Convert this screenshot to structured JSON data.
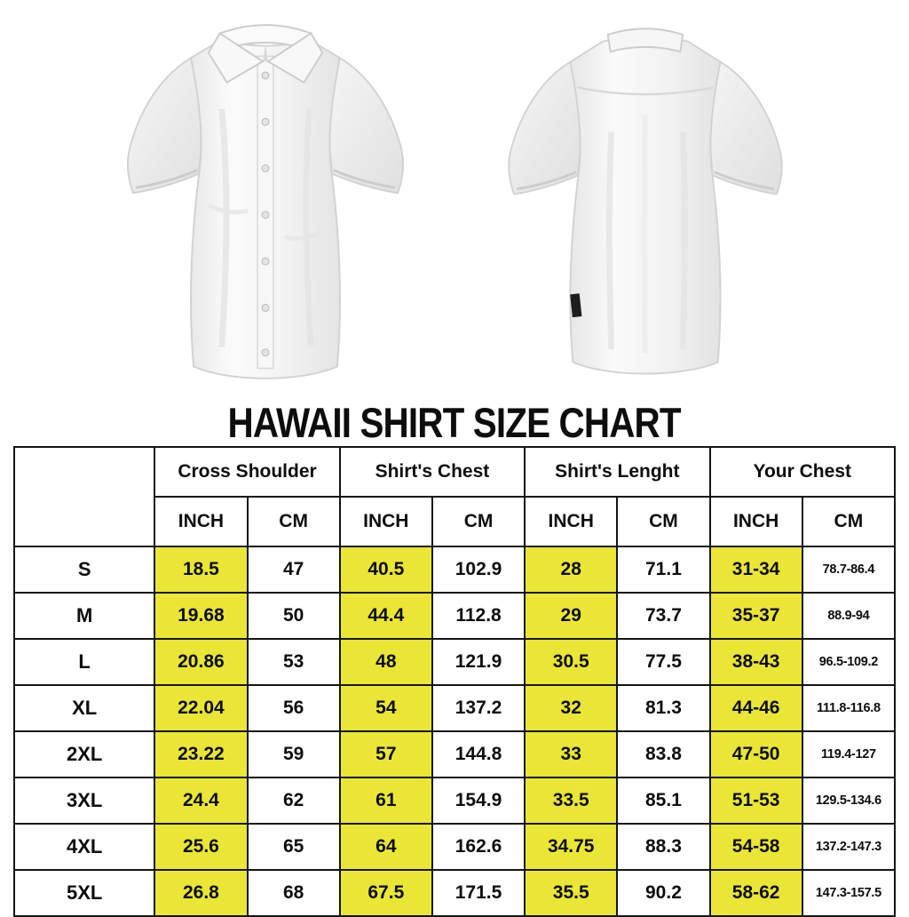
{
  "title": "HAWAII SHIRT SIZE CHART",
  "shirts": {
    "front_alt": "white short-sleeve button-up shirt, front view",
    "back_alt": "white short-sleeve button-up shirt, back view"
  },
  "table": {
    "highlight_color": "#eae636",
    "border_color": "#151515",
    "groups": [
      {
        "label": "Cross Shoulder"
      },
      {
        "label": "Shirt's Chest"
      },
      {
        "label": "Shirt's Lenght"
      },
      {
        "label": "Your Chest"
      }
    ],
    "unit_headers": [
      "INCH",
      "CM"
    ],
    "rows": [
      {
        "size": "S",
        "values": [
          "18.5",
          "47",
          "40.5",
          "102.9",
          "28",
          "71.1",
          "31-34",
          "78.7-86.4"
        ]
      },
      {
        "size": "M",
        "values": [
          "19.68",
          "50",
          "44.4",
          "112.8",
          "29",
          "73.7",
          "35-37",
          "88.9-94"
        ]
      },
      {
        "size": "L",
        "values": [
          "20.86",
          "53",
          "48",
          "121.9",
          "30.5",
          "77.5",
          "38-43",
          "96.5-109.2"
        ]
      },
      {
        "size": "XL",
        "values": [
          "22.04",
          "56",
          "54",
          "137.2",
          "32",
          "81.3",
          "44-46",
          "111.8-116.8"
        ]
      },
      {
        "size": "2XL",
        "values": [
          "23.22",
          "59",
          "57",
          "144.8",
          "33",
          "83.8",
          "47-50",
          "119.4-127"
        ]
      },
      {
        "size": "3XL",
        "values": [
          "24.4",
          "62",
          "61",
          "154.9",
          "33.5",
          "85.1",
          "51-53",
          "129.5-134.6"
        ]
      },
      {
        "size": "4XL",
        "values": [
          "25.6",
          "65",
          "64",
          "162.6",
          "34.75",
          "88.3",
          "54-58",
          "137.2-147.3"
        ]
      },
      {
        "size": "5XL",
        "values": [
          "26.8",
          "68",
          "67.5",
          "171.5",
          "35.5",
          "90.2",
          "58-62",
          "147.3-157.5"
        ]
      }
    ]
  }
}
